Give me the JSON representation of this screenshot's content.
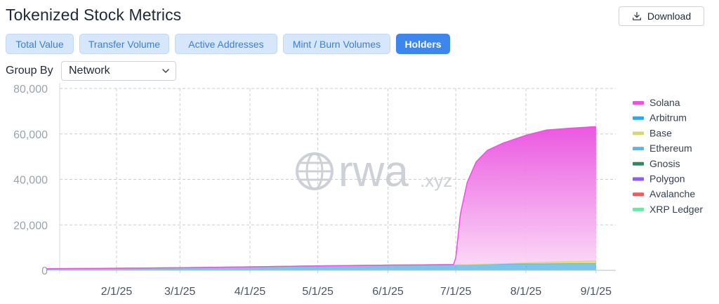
{
  "header": {
    "title": "Tokenized Stock Metrics",
    "download_label": "Download"
  },
  "tabs": [
    {
      "label": "Total Value",
      "active": false
    },
    {
      "label": "Transfer Volume",
      "active": false
    },
    {
      "label": "Active Addresses",
      "active": false
    },
    {
      "label": "Mint / Burn Volumes",
      "active": false
    },
    {
      "label": "Holders",
      "active": true
    }
  ],
  "group_by": {
    "label": "Group By",
    "value": "Network"
  },
  "watermark": {
    "main": "rwa",
    "suffix": ".xyz"
  },
  "colors": {
    "accent": "#3d86ec",
    "tab_bg": "#d6e6fb",
    "tab_text": "#3b7fd8"
  },
  "chart_data": {
    "type": "area",
    "stacked": true,
    "title": "",
    "xlabel": "",
    "ylabel": "",
    "ylim": [
      0,
      80000
    ],
    "yticks": [
      0,
      20000,
      40000,
      60000,
      80000
    ],
    "ytick_labels": [
      "0",
      "20,000",
      "40,000",
      "60,000",
      "80,000"
    ],
    "xticks": [
      "2/1/25",
      "3/1/25",
      "4/1/25",
      "5/1/25",
      "6/1/25",
      "7/1/25",
      "8/1/25",
      "9/1/25"
    ],
    "grid": true,
    "legend_position": "right",
    "x": [
      "2025-01-01",
      "2025-02-01",
      "2025-03-01",
      "2025-04-01",
      "2025-05-01",
      "2025-06-01",
      "2025-06-30",
      "2025-07-01",
      "2025-07-03",
      "2025-07-06",
      "2025-07-10",
      "2025-07-15",
      "2025-07-22",
      "2025-08-01",
      "2025-08-10",
      "2025-08-20",
      "2025-09-01"
    ],
    "series": [
      {
        "name": "Solana",
        "color": "#f04fe0",
        "values": [
          0,
          0,
          0,
          0,
          0,
          0,
          0,
          3000,
          22000,
          36000,
          45000,
          50000,
          53000,
          56000,
          58000,
          58500,
          59000
        ]
      },
      {
        "name": "Arbitrum",
        "color": "#2fa7e8",
        "values": [
          0,
          0,
          0,
          0,
          0,
          0,
          0,
          0,
          0,
          0,
          0,
          0,
          0,
          0,
          0,
          0,
          0
        ]
      },
      {
        "name": "Base",
        "color": "#d4da6a",
        "values": [
          0,
          0,
          0,
          0,
          0,
          0,
          0,
          0,
          0,
          0,
          0,
          0,
          200,
          500,
          800,
          1000,
          1200
        ]
      },
      {
        "name": "Ethereum",
        "color": "#5bb6e8",
        "values": [
          700,
          900,
          1100,
          1500,
          1900,
          2300,
          2500,
          2500,
          2600,
          2600,
          2700,
          2800,
          2800,
          2900,
          2900,
          3000,
          3000
        ]
      },
      {
        "name": "Gnosis",
        "color": "#2b8a60",
        "values": [
          0,
          0,
          0,
          0,
          0,
          0,
          0,
          0,
          0,
          0,
          0,
          0,
          0,
          0,
          0,
          0,
          0
        ]
      },
      {
        "name": "Polygon",
        "color": "#8b5cf6",
        "values": [
          0,
          0,
          0,
          0,
          0,
          0,
          0,
          0,
          0,
          0,
          0,
          0,
          0,
          0,
          0,
          0,
          0
        ]
      },
      {
        "name": "Avalanche",
        "color": "#ef5b5b",
        "values": [
          0,
          0,
          0,
          0,
          0,
          0,
          0,
          0,
          0,
          0,
          0,
          0,
          0,
          0,
          0,
          0,
          0
        ]
      },
      {
        "name": "XRP Ledger",
        "color": "#6ee7a6",
        "values": [
          0,
          0,
          0,
          0,
          0,
          0,
          0,
          0,
          0,
          0,
          0,
          0,
          0,
          0,
          0,
          0,
          0
        ]
      }
    ]
  }
}
